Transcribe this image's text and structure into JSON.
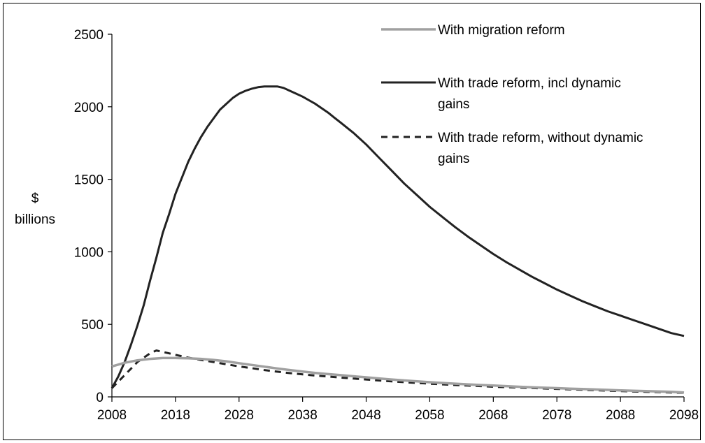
{
  "chart_data": {
    "type": "line",
    "title": "",
    "xlabel": "",
    "ylabel_lines": [
      "$",
      "billions"
    ],
    "xlim": [
      2008,
      2098
    ],
    "ylim": [
      0,
      2500
    ],
    "x_ticks": [
      "2008",
      "2018",
      "2028",
      "2038",
      "2048",
      "2058",
      "2068",
      "2078",
      "2088",
      "2098"
    ],
    "y_ticks": [
      "0",
      "500",
      "1000",
      "1500",
      "2000",
      "2500"
    ],
    "grid": false,
    "legend_position": "top-right",
    "colors": {
      "migration": "#a0a0a0",
      "trade_dynamic": "#222222",
      "trade_static": "#222222"
    },
    "series": [
      {
        "name": "With migration reform",
        "legend_lines": [
          "With migration reform"
        ],
        "style": "solid",
        "x": [
          2008,
          2010,
          2012,
          2014,
          2016,
          2018,
          2020,
          2022,
          2024,
          2026,
          2028,
          2030,
          2032,
          2034,
          2036,
          2038,
          2040,
          2042,
          2044,
          2046,
          2048,
          2050,
          2052,
          2054,
          2056,
          2058,
          2060,
          2062,
          2064,
          2066,
          2068,
          2070,
          2072,
          2074,
          2076,
          2078,
          2080,
          2082,
          2084,
          2086,
          2088,
          2090,
          2092,
          2094,
          2096,
          2098
        ],
        "y": [
          210,
          235,
          252,
          262,
          268,
          268,
          266,
          262,
          255,
          245,
          232,
          220,
          208,
          196,
          185,
          175,
          165,
          157,
          150,
          142,
          135,
          127,
          120,
          113,
          107,
          101,
          96,
          91,
          86,
          82,
          78,
          74,
          70,
          66,
          63,
          60,
          57,
          54,
          51,
          48,
          45,
          42,
          40,
          37,
          35,
          30
        ]
      },
      {
        "name": "With trade reform, incl dynamic gains",
        "legend_lines": [
          "With trade reform, incl dynamic",
          "gains"
        ],
        "style": "solid",
        "x": [
          2008,
          2009,
          2010,
          2011,
          2012,
          2013,
          2014,
          2015,
          2016,
          2017,
          2018,
          2019,
          2020,
          2021,
          2022,
          2023,
          2024,
          2025,
          2026,
          2027,
          2028,
          2029,
          2030,
          2031,
          2032,
          2033,
          2034,
          2035,
          2036,
          2037,
          2038,
          2039,
          2040,
          2041,
          2042,
          2043,
          2044,
          2046,
          2048,
          2050,
          2052,
          2054,
          2056,
          2058,
          2060,
          2062,
          2064,
          2066,
          2068,
          2070,
          2072,
          2074,
          2076,
          2078,
          2080,
          2082,
          2084,
          2086,
          2088,
          2090,
          2092,
          2094,
          2096,
          2098
        ],
        "y": [
          60,
          140,
          240,
          360,
          490,
          630,
          800,
          960,
          1130,
          1260,
          1400,
          1510,
          1620,
          1710,
          1790,
          1860,
          1920,
          1980,
          2020,
          2060,
          2090,
          2110,
          2125,
          2135,
          2140,
          2140,
          2140,
          2130,
          2110,
          2090,
          2070,
          2045,
          2020,
          1990,
          1960,
          1925,
          1890,
          1820,
          1740,
          1650,
          1560,
          1470,
          1390,
          1310,
          1240,
          1170,
          1105,
          1045,
          985,
          930,
          880,
          830,
          785,
          740,
          700,
          660,
          625,
          590,
          560,
          530,
          500,
          470,
          440,
          420
        ]
      },
      {
        "name": "With trade reform, without dynamic gains",
        "legend_lines": [
          "With trade reform, without dynamic",
          "gains"
        ],
        "style": "dashed",
        "x": [
          2008,
          2010,
          2012,
          2014,
          2015,
          2016,
          2018,
          2020,
          2022,
          2024,
          2026,
          2028,
          2030,
          2032,
          2034,
          2036,
          2038,
          2040,
          2042,
          2044,
          2046,
          2048,
          2050,
          2052,
          2054,
          2056,
          2058,
          2060,
          2062,
          2064,
          2066,
          2068,
          2070,
          2072,
          2074,
          2076,
          2078,
          2080,
          2082,
          2084,
          2086,
          2088,
          2090,
          2092,
          2094,
          2096,
          2098
        ],
        "y": [
          60,
          150,
          240,
          300,
          320,
          310,
          290,
          270,
          255,
          240,
          225,
          210,
          198,
          185,
          174,
          164,
          155,
          147,
          140,
          133,
          126,
          120,
          113,
          107,
          101,
          96,
          91,
          86,
          82,
          78,
          74,
          70,
          67,
          64,
          61,
          58,
          55,
          52,
          49,
          46,
          43,
          40,
          37,
          35,
          33,
          30,
          28
        ]
      }
    ]
  }
}
